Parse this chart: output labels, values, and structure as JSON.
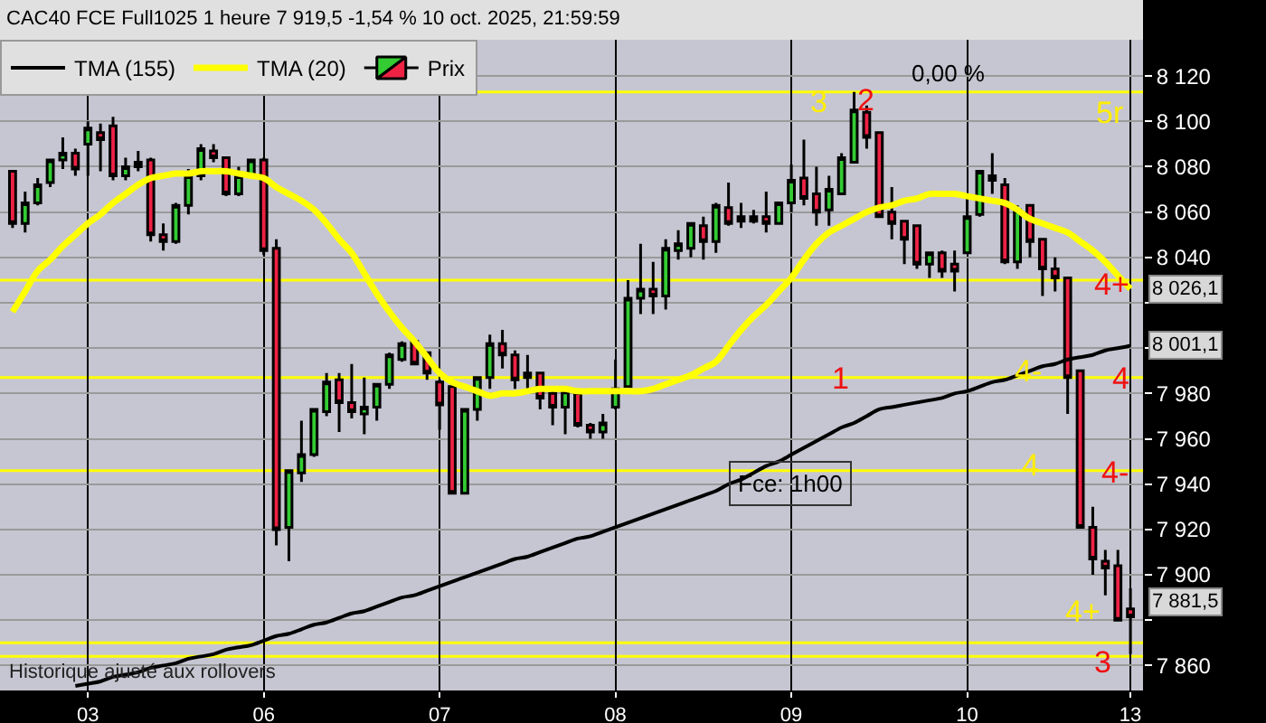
{
  "chart_data": {
    "type": "candlestick",
    "title": "CAC40 FCE Full1025 1 heure 7 919,5 -1,54 % 10 oct. 2025, 21:59:59",
    "categories": [
      null,
      null,
      null,
      null,
      null,
      null,
      "03",
      null,
      null,
      null,
      null,
      null,
      null,
      null,
      null,
      null,
      null,
      null,
      null,
      null,
      "06",
      null,
      null,
      null,
      null,
      null,
      null,
      null,
      null,
      null,
      null,
      null,
      null,
      null,
      "07",
      null,
      null,
      null,
      null,
      null,
      null,
      null,
      null,
      null,
      null,
      null,
      null,
      null,
      "08",
      null,
      null,
      null,
      null,
      null,
      null,
      null,
      null,
      null,
      null,
      null,
      null,
      null,
      "09",
      null,
      null,
      null,
      null,
      null,
      null,
      null,
      null,
      null,
      null,
      null,
      null,
      null,
      "10",
      null,
      null,
      null,
      null,
      null,
      null,
      null,
      null,
      null,
      null,
      null,
      null,
      "13"
    ],
    "ylim": [
      7849,
      8136
    ],
    "yticks": [
      {
        "value": 7860,
        "label": "7 860"
      },
      {
        "value": 7880,
        "label": null
      },
      {
        "value": 7900,
        "label": "7 900"
      },
      {
        "value": 7920,
        "label": "7 920"
      },
      {
        "value": 7940,
        "label": "7 940"
      },
      {
        "value": 7960,
        "label": "7 960"
      },
      {
        "value": 7980,
        "label": "7 980"
      },
      {
        "value": 8000,
        "label": null
      },
      {
        "value": 8020,
        "label": null
      },
      {
        "value": 8040,
        "label": "8 040"
      },
      {
        "value": 8060,
        "label": "8 060"
      },
      {
        "value": 8080,
        "label": "8 080"
      },
      {
        "value": 8100,
        "label": "8 100"
      },
      {
        "value": 8120,
        "label": "8 120"
      }
    ],
    "grid": true,
    "legend": "top left",
    "series": [
      {
        "name": "Prix",
        "ohlc": [
          [
            8078,
            8078,
            8053,
            8055
          ],
          [
            8055,
            8069,
            8051,
            8064
          ],
          [
            8064,
            8075,
            8063,
            8072
          ],
          [
            8073,
            8083,
            8071,
            8083
          ],
          [
            8083,
            8093,
            8079,
            8086
          ],
          [
            8086,
            8088,
            8076,
            8079
          ],
          [
            8090,
            8100,
            8076,
            8097
          ],
          [
            8095,
            8099,
            8078,
            8092
          ],
          [
            8098,
            8102,
            8074,
            8076
          ],
          [
            8076,
            8084,
            8074,
            8080
          ],
          [
            8080,
            8087,
            8078,
            8082
          ],
          [
            8083,
            8084,
            8047,
            8050
          ],
          [
            8050,
            8055,
            8043,
            8047
          ],
          [
            8047,
            8064,
            8046,
            8063
          ],
          [
            8063,
            8079,
            8059,
            8076
          ],
          [
            8076,
            8090,
            8074,
            8088
          ],
          [
            8087,
            8090,
            8082,
            8084
          ],
          [
            8084,
            8084,
            8067,
            8068
          ],
          [
            8068,
            8080,
            8067,
            8076
          ],
          [
            8076,
            8083,
            8076,
            8083
          ],
          [
            8083,
            8084,
            8041,
            8043
          ],
          [
            8044,
            8048,
            7913,
            7920
          ],
          [
            7921,
            7946,
            7906,
            7946
          ],
          [
            7945,
            7968,
            7941,
            7953
          ],
          [
            7953,
            7973,
            7952,
            7973
          ],
          [
            7972,
            7989,
            7970,
            7985
          ],
          [
            7986,
            7989,
            7963,
            7976
          ],
          [
            7976,
            7993,
            7969,
            7972
          ],
          [
            7971,
            7987,
            7962,
            7974
          ],
          [
            7974,
            7984,
            7968,
            7984
          ],
          [
            7984,
            7998,
            7982,
            7997
          ],
          [
            7995,
            8003,
            7994,
            8002
          ],
          [
            8003,
            8004,
            7993,
            7993
          ],
          [
            7998,
            7998,
            7986,
            7989
          ],
          [
            7985,
            7986,
            7964,
            7975
          ],
          [
            7983,
            7983,
            7936,
            7936
          ],
          [
            7936,
            7973,
            7936,
            7973
          ],
          [
            7973,
            7987,
            7968,
            7987
          ],
          [
            7987,
            8006,
            7982,
            8002
          ],
          [
            8002,
            8008,
            7991,
            7997
          ],
          [
            7997,
            7999,
            7982,
            7986
          ],
          [
            7987,
            7997,
            7982,
            7989
          ],
          [
            7989,
            7989,
            7973,
            7978
          ],
          [
            7980,
            7983,
            7966,
            7974
          ],
          [
            7974,
            7982,
            7962,
            7981
          ],
          [
            7980,
            7981,
            7965,
            7966
          ],
          [
            7966,
            7967,
            7960,
            7963
          ],
          [
            7963,
            7971,
            7960,
            7967
          ],
          [
            7974,
            7995,
            7973,
            7982
          ],
          [
            7983,
            8030,
            7983,
            8022
          ],
          [
            8022,
            8046,
            8015,
            8026
          ],
          [
            8026,
            8038,
            8015,
            8023
          ],
          [
            8023,
            8048,
            8017,
            8044
          ],
          [
            8043,
            8052,
            8039,
            8046
          ],
          [
            8044,
            8055,
            8040,
            8055
          ],
          [
            8054,
            8058,
            8039,
            8047
          ],
          [
            8047,
            8064,
            8042,
            8063
          ],
          [
            8062,
            8073,
            8054,
            8055
          ],
          [
            8056,
            8064,
            8053,
            8058
          ],
          [
            8058,
            8061,
            8055,
            8056
          ],
          [
            8058,
            8069,
            8051,
            8055
          ],
          [
            8055,
            8064,
            8055,
            8064
          ],
          [
            8064,
            8081,
            8060,
            8074
          ],
          [
            8075,
            8092,
            8063,
            8066
          ],
          [
            8068,
            8080,
            8054,
            8060
          ],
          [
            8061,
            8076,
            8054,
            8070
          ],
          [
            8068,
            8086,
            8068,
            8084
          ],
          [
            8082,
            8113,
            8082,
            8105
          ],
          [
            8104,
            8107,
            8088,
            8093
          ],
          [
            8095,
            8095,
            8058,
            8058
          ],
          [
            8060,
            8071,
            8048,
            8055
          ],
          [
            8056,
            8056,
            8037,
            8048
          ],
          [
            8054,
            8054,
            8035,
            8037
          ],
          [
            8037,
            8042,
            8031,
            8042
          ],
          [
            8042,
            8043,
            8031,
            8034
          ],
          [
            8037,
            8043,
            8025,
            8034
          ],
          [
            8042,
            8068,
            8042,
            8058
          ],
          [
            8059,
            8078,
            8058,
            8078
          ],
          [
            8074,
            8086,
            8068,
            8076
          ],
          [
            8072,
            8075,
            8037,
            8038
          ],
          [
            8038,
            8063,
            8035,
            8061
          ],
          [
            8063,
            8063,
            8040,
            8047
          ],
          [
            8048,
            8048,
            8023,
            8035
          ],
          [
            8035,
            8040,
            8025,
            8031
          ],
          [
            8031,
            8031,
            7971,
            7987
          ],
          [
            7990,
            7990,
            7921,
            7921
          ],
          [
            7921,
            7930,
            7900,
            7907
          ],
          [
            7906,
            7911,
            7891,
            7903
          ],
          [
            7904,
            7911,
            7880,
            7880
          ],
          [
            7885,
            7894,
            7865,
            7881.5
          ]
        ]
      },
      {
        "type": "line",
        "name": "TMA (155)",
        "color": "#000000",
        "values": [
          null,
          null,
          null,
          null,
          null,
          7851,
          7852,
          7853,
          7855,
          7856,
          7857,
          7859,
          7860,
          7861,
          7863,
          7864,
          7865,
          7867,
          7868,
          7869,
          7871,
          7873,
          7874,
          7876,
          7878,
          7879,
          7881,
          7883,
          7884,
          7886,
          7888,
          7890,
          7891,
          7893,
          7895,
          7897,
          7899,
          7901,
          7903,
          7905,
          7907,
          7908,
          7910,
          7912,
          7914,
          7916,
          7917,
          7919,
          7921,
          7923,
          7925,
          7927,
          7929,
          7931,
          7933,
          7935,
          7937,
          7940,
          7942,
          7945,
          7948,
          7950,
          7953,
          7956,
          7959,
          7962,
          7965,
          7967,
          7970,
          7973,
          7974,
          7975,
          7976,
          7977,
          7978,
          7980,
          7981,
          7983,
          7985,
          7986,
          7988,
          7990,
          7992,
          7993,
          7995,
          7996,
          7997,
          7999,
          8000,
          8001.1
        ]
      },
      {
        "type": "line",
        "name": "TMA (20)",
        "color": "#ffff00",
        "values": [
          8016,
          8025,
          8034,
          8039,
          8045,
          8050,
          8055,
          8059,
          8064,
          8068,
          8072,
          8075,
          8076,
          8077,
          8077,
          8078,
          8078,
          8078,
          8077,
          8076,
          8075,
          8071,
          8068,
          8065,
          8061,
          8055,
          8048,
          8042,
          8033,
          8024,
          8016,
          8009,
          8003,
          7996,
          7989,
          7985,
          7983,
          7981,
          7979,
          7980,
          7980,
          7981,
          7982,
          7982,
          7982,
          7981,
          7981,
          7981,
          7981,
          7981,
          7981,
          7982,
          7984,
          7986,
          7988,
          7991,
          7994,
          8001,
          8008,
          8014,
          8019,
          8025,
          8031,
          8039,
          8046,
          8051,
          8054,
          8057,
          8060,
          8062,
          8063,
          8065,
          8066,
          8068,
          8068,
          8068,
          8067,
          8066,
          8065,
          8064,
          8061,
          8057,
          8055,
          8053,
          8051,
          8047,
          8043,
          8038,
          8032,
          8026.1
        ]
      }
    ],
    "ref_lines": [
      {
        "axis": "y",
        "value": 8113,
        "color": "#ffff00"
      },
      {
        "axis": "y",
        "value": 8030,
        "color": "#ffff00"
      },
      {
        "axis": "y",
        "value": 7987,
        "color": "#ffff00"
      },
      {
        "axis": "y",
        "value": 7946,
        "color": "#ffff00"
      },
      {
        "axis": "y",
        "value": 7870,
        "color": "#ffff00"
      },
      {
        "axis": "y",
        "value": 7864,
        "color": "#ffff00"
      }
    ],
    "annotations": [
      "3",
      "2",
      "0,00 %",
      "1",
      "4-",
      "4",
      "Fce: 1h00",
      "8 026,1",
      "8 001,1",
      "7 881,5",
      "Historique ajusté aux rollovers",
      "5r",
      "4+",
      "4",
      "4-",
      "4+",
      "3"
    ]
  }
}
